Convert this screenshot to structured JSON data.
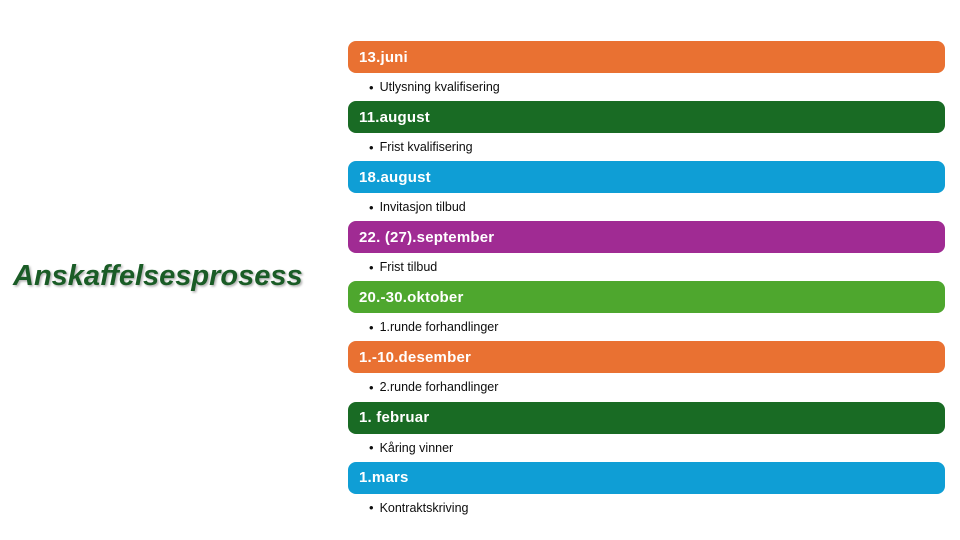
{
  "page": {
    "background": "#FFFFFF"
  },
  "title": {
    "text": "Anskaffelsesprosess",
    "color": "#1A5C26"
  },
  "timeline": {
    "bullet_glyph": "•",
    "items": [
      {
        "date": "13.juni",
        "description": "Utlysning kvalifisering",
        "color": "#E97132"
      },
      {
        "date": "11.august",
        "description": "Frist kvalifisering",
        "color": "#196B24"
      },
      {
        "date": "18.august",
        "description": "Invitasjon tilbud",
        "color": "#0F9ED5"
      },
      {
        "date": "22. (27).september",
        "description": "Frist tilbud",
        "color": "#A02B93"
      },
      {
        "date": "20.-30.oktober",
        "description": "1.runde forhandlinger",
        "color": "#4EA72E"
      },
      {
        "date": "1.-10.desember",
        "description": "2.runde forhandlinger",
        "color": "#E97132"
      },
      {
        "date": "1. februar",
        "description": "Kåring vinner",
        "color": "#196B24"
      },
      {
        "date": "1.mars",
        "description": "Kontraktskriving",
        "color": "#0F9ED5"
      }
    ]
  }
}
